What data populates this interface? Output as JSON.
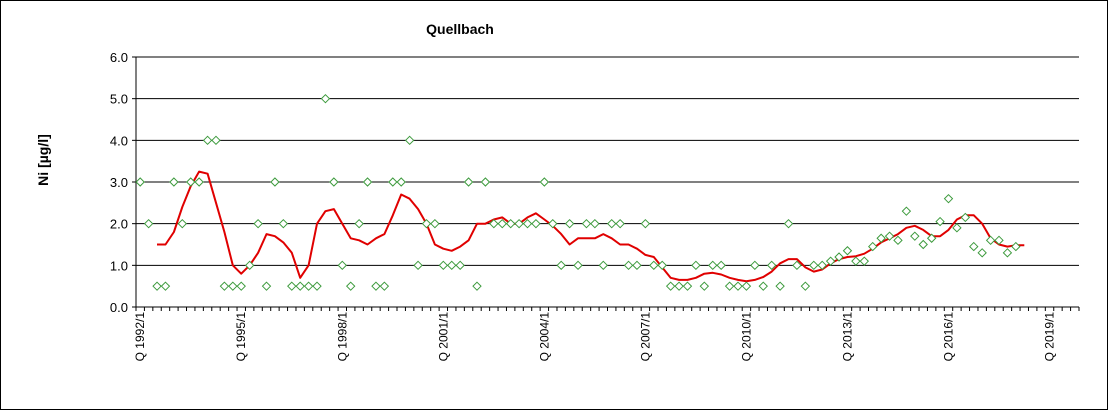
{
  "chart_data": {
    "type": "scatter",
    "title": "Quellbach",
    "ylabel": "Ni [µg/l]",
    "xlabel": "",
    "ylim": [
      0,
      6
    ],
    "y_ticks": [
      "0.0",
      "1.0",
      "2.0",
      "3.0",
      "4.0",
      "5.0",
      "6.0"
    ],
    "grid": "horizontal",
    "x_ticks": [
      {
        "index": 0,
        "label": "Q 1992/1"
      },
      {
        "index": 12,
        "label": "Q 1995/1"
      },
      {
        "index": 24,
        "label": "Q 1998/1"
      },
      {
        "index": 36,
        "label": "Q 2001/1"
      },
      {
        "index": 48,
        "label": "Q 2004/1"
      },
      {
        "index": 60,
        "label": "Q 2007/1"
      },
      {
        "index": 72,
        "label": "Q 2010/1"
      },
      {
        "index": 84,
        "label": "Q 2013/1"
      },
      {
        "index": 96,
        "label": "Q 2016/1"
      },
      {
        "index": 108,
        "label": "Q 2019/1"
      }
    ],
    "x_count": 112,
    "colors": {
      "points": "#3c9a3c",
      "line": "#e00000"
    },
    "series": [
      {
        "kind": "points",
        "points": [
          [
            0,
            3.0
          ],
          [
            1,
            2.0
          ],
          [
            2,
            0.5
          ],
          [
            3,
            0.5
          ],
          [
            4,
            3.0
          ],
          [
            5,
            2.0
          ],
          [
            6,
            3.0
          ],
          [
            7,
            3.0
          ],
          [
            8,
            4.0
          ],
          [
            9,
            4.0
          ],
          [
            10,
            0.5
          ],
          [
            11,
            0.5
          ],
          [
            12,
            0.5
          ],
          [
            13,
            1.0
          ],
          [
            14,
            2.0
          ],
          [
            15,
            0.5
          ],
          [
            16,
            3.0
          ],
          [
            17,
            2.0
          ],
          [
            18,
            0.5
          ],
          [
            19,
            0.5
          ],
          [
            20,
            0.5
          ],
          [
            21,
            0.5
          ],
          [
            22,
            5.0
          ],
          [
            23,
            3.0
          ],
          [
            24,
            1.0
          ],
          [
            25,
            0.5
          ],
          [
            26,
            2.0
          ],
          [
            27,
            3.0
          ],
          [
            28,
            0.5
          ],
          [
            29,
            0.5
          ],
          [
            30,
            3.0
          ],
          [
            31,
            3.0
          ],
          [
            32,
            4.0
          ],
          [
            33,
            1.0
          ],
          [
            34,
            2.0
          ],
          [
            35,
            2.0
          ],
          [
            36,
            1.0
          ],
          [
            37,
            1.0
          ],
          [
            38,
            1.0
          ],
          [
            39,
            3.0
          ],
          [
            40,
            0.5
          ],
          [
            41,
            3.0
          ],
          [
            42,
            2.0
          ],
          [
            43,
            2.0
          ],
          [
            44,
            2.0
          ],
          [
            45,
            2.0
          ],
          [
            46,
            2.0
          ],
          [
            47,
            2.0
          ],
          [
            48,
            3.0
          ],
          [
            49,
            2.0
          ],
          [
            50,
            1.0
          ],
          [
            51,
            2.0
          ],
          [
            52,
            1.0
          ],
          [
            53,
            2.0
          ],
          [
            54,
            2.0
          ],
          [
            55,
            1.0
          ],
          [
            56,
            2.0
          ],
          [
            57,
            2.0
          ],
          [
            58,
            1.0
          ],
          [
            59,
            1.0
          ],
          [
            60,
            2.0
          ],
          [
            61,
            1.0
          ],
          [
            62,
            1.0
          ],
          [
            63,
            0.5
          ],
          [
            64,
            0.5
          ],
          [
            65,
            0.5
          ],
          [
            66,
            1.0
          ],
          [
            67,
            0.5
          ],
          [
            68,
            1.0
          ],
          [
            69,
            1.0
          ],
          [
            70,
            0.5
          ],
          [
            71,
            0.5
          ],
          [
            72,
            0.5
          ],
          [
            73,
            1.0
          ],
          [
            74,
            0.5
          ],
          [
            75,
            1.0
          ],
          [
            76,
            0.5
          ],
          [
            77,
            2.0
          ],
          [
            78,
            1.0
          ],
          [
            79,
            0.5
          ],
          [
            80,
            1.0
          ],
          [
            81,
            1.0
          ],
          [
            82,
            1.1
          ],
          [
            83,
            1.2
          ],
          [
            84,
            1.35
          ],
          [
            85,
            1.1
          ],
          [
            86,
            1.1
          ],
          [
            87,
            1.45
          ],
          [
            88,
            1.65
          ],
          [
            89,
            1.7
          ],
          [
            90,
            1.6
          ],
          [
            91,
            2.3
          ],
          [
            92,
            1.7
          ],
          [
            93,
            1.5
          ],
          [
            94,
            1.65
          ],
          [
            95,
            2.05
          ],
          [
            96,
            2.6
          ],
          [
            97,
            1.9
          ],
          [
            98,
            2.15
          ],
          [
            99,
            1.45
          ],
          [
            100,
            1.3
          ],
          [
            101,
            1.6
          ],
          [
            102,
            1.6
          ],
          [
            103,
            1.3
          ],
          [
            104,
            1.45
          ]
        ]
      },
      {
        "kind": "line",
        "points": [
          [
            2,
            1.5
          ],
          [
            3,
            1.5
          ],
          [
            4,
            1.8
          ],
          [
            5,
            2.4
          ],
          [
            6,
            2.9
          ],
          [
            7,
            3.25
          ],
          [
            8,
            3.2
          ],
          [
            9,
            2.5
          ],
          [
            10,
            1.8
          ],
          [
            11,
            1.0
          ],
          [
            12,
            0.8
          ],
          [
            13,
            1.0
          ],
          [
            14,
            1.3
          ],
          [
            15,
            1.75
          ],
          [
            16,
            1.7
          ],
          [
            17,
            1.55
          ],
          [
            18,
            1.3
          ],
          [
            19,
            0.7
          ],
          [
            20,
            1.0
          ],
          [
            21,
            2.0
          ],
          [
            22,
            2.3
          ],
          [
            23,
            2.35
          ],
          [
            24,
            2.0
          ],
          [
            25,
            1.65
          ],
          [
            26,
            1.6
          ],
          [
            27,
            1.5
          ],
          [
            28,
            1.65
          ],
          [
            29,
            1.75
          ],
          [
            30,
            2.2
          ],
          [
            31,
            2.7
          ],
          [
            32,
            2.6
          ],
          [
            33,
            2.35
          ],
          [
            34,
            2.0
          ],
          [
            35,
            1.5
          ],
          [
            36,
            1.4
          ],
          [
            37,
            1.35
          ],
          [
            38,
            1.45
          ],
          [
            39,
            1.6
          ],
          [
            40,
            2.0
          ],
          [
            41,
            2.0
          ],
          [
            42,
            2.1
          ],
          [
            43,
            2.15
          ],
          [
            44,
            2.0
          ],
          [
            45,
            2.0
          ],
          [
            46,
            2.15
          ],
          [
            47,
            2.25
          ],
          [
            48,
            2.1
          ],
          [
            49,
            1.95
          ],
          [
            50,
            1.75
          ],
          [
            51,
            1.5
          ],
          [
            52,
            1.65
          ],
          [
            53,
            1.65
          ],
          [
            54,
            1.65
          ],
          [
            55,
            1.75
          ],
          [
            56,
            1.65
          ],
          [
            57,
            1.5
          ],
          [
            58,
            1.5
          ],
          [
            59,
            1.4
          ],
          [
            60,
            1.25
          ],
          [
            61,
            1.2
          ],
          [
            62,
            0.95
          ],
          [
            63,
            0.7
          ],
          [
            64,
            0.65
          ],
          [
            65,
            0.65
          ],
          [
            66,
            0.7
          ],
          [
            67,
            0.8
          ],
          [
            68,
            0.82
          ],
          [
            69,
            0.78
          ],
          [
            70,
            0.7
          ],
          [
            71,
            0.65
          ],
          [
            72,
            0.62
          ],
          [
            73,
            0.65
          ],
          [
            74,
            0.72
          ],
          [
            75,
            0.85
          ],
          [
            76,
            1.05
          ],
          [
            77,
            1.15
          ],
          [
            78,
            1.15
          ],
          [
            79,
            0.95
          ],
          [
            80,
            0.85
          ],
          [
            81,
            0.9
          ],
          [
            82,
            1.05
          ],
          [
            83,
            1.15
          ],
          [
            84,
            1.2
          ],
          [
            85,
            1.22
          ],
          [
            86,
            1.28
          ],
          [
            87,
            1.4
          ],
          [
            88,
            1.55
          ],
          [
            89,
            1.65
          ],
          [
            90,
            1.75
          ],
          [
            91,
            1.9
          ],
          [
            92,
            1.95
          ],
          [
            93,
            1.85
          ],
          [
            94,
            1.7
          ],
          [
            95,
            1.7
          ],
          [
            96,
            1.85
          ],
          [
            97,
            2.1
          ],
          [
            98,
            2.2
          ],
          [
            99,
            2.2
          ],
          [
            100,
            2.0
          ],
          [
            101,
            1.65
          ],
          [
            102,
            1.5
          ],
          [
            103,
            1.45
          ],
          [
            104,
            1.48
          ],
          [
            105,
            1.48
          ]
        ]
      }
    ]
  }
}
